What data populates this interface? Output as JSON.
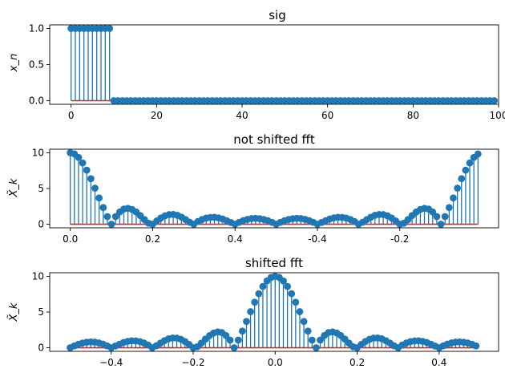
{
  "figure": {
    "colors": {
      "stem": "#1f77b4",
      "baseline": "#d62728",
      "axis": "#000000"
    },
    "panels": [
      {
        "id": "sig",
        "title": "sig",
        "ylabel": "x_n",
        "xticks": [
          {
            "pos": 0,
            "label": "0"
          },
          {
            "pos": 20,
            "label": "20"
          },
          {
            "pos": 40,
            "label": "40"
          },
          {
            "pos": 60,
            "label": "60"
          },
          {
            "pos": 80,
            "label": "80"
          },
          {
            "pos": 100,
            "label": "100"
          }
        ],
        "yticks": [
          {
            "pos": 0,
            "label": "0.0"
          },
          {
            "pos": 0.5,
            "label": "0.5"
          },
          {
            "pos": 1,
            "label": "1.0"
          }
        ]
      },
      {
        "id": "not-shifted",
        "title": "not shifted fft",
        "ylabel": "X̃_k",
        "xticks": [
          {
            "pos": 0,
            "label": "0.0"
          },
          {
            "pos": 20,
            "label": "0.2"
          },
          {
            "pos": 40,
            "label": "0.4"
          },
          {
            "pos": 60,
            "label": "-0.4"
          },
          {
            "pos": 80,
            "label": "-0.2"
          }
        ],
        "yticks": [
          {
            "pos": 0,
            "label": "0"
          },
          {
            "pos": 5,
            "label": "5"
          },
          {
            "pos": 10,
            "label": "10"
          }
        ]
      },
      {
        "id": "shifted",
        "title": "shifted fft",
        "ylabel": "X̃_k",
        "xticks": [
          {
            "pos": -0.4,
            "label": "−0.4"
          },
          {
            "pos": -0.2,
            "label": "−0.2"
          },
          {
            "pos": 0,
            "label": "0.0"
          },
          {
            "pos": 0.2,
            "label": "0.2"
          },
          {
            "pos": 0.4,
            "label": "0.4"
          }
        ],
        "yticks": [
          {
            "pos": 0,
            "label": "0"
          },
          {
            "pos": 5,
            "label": "5"
          },
          {
            "pos": 10,
            "label": "10"
          }
        ]
      }
    ]
  },
  "chart_data": [
    {
      "type": "stem",
      "title": "sig",
      "xlabel": "",
      "ylabel": "x_n",
      "xlim": [
        -5,
        100
      ],
      "ylim": [
        -0.05,
        1.05
      ],
      "x": [
        0,
        1,
        2,
        3,
        4,
        5,
        6,
        7,
        8,
        9,
        10,
        11,
        12,
        13,
        14,
        15,
        16,
        17,
        18,
        19,
        20,
        21,
        22,
        23,
        24,
        25,
        26,
        27,
        28,
        29,
        30,
        31,
        32,
        33,
        34,
        35,
        36,
        37,
        38,
        39,
        40,
        41,
        42,
        43,
        44,
        45,
        46,
        47,
        48,
        49,
        50,
        51,
        52,
        53,
        54,
        55,
        56,
        57,
        58,
        59,
        60,
        61,
        62,
        63,
        64,
        65,
        66,
        67,
        68,
        69,
        70,
        71,
        72,
        73,
        74,
        75,
        76,
        77,
        78,
        79,
        80,
        81,
        82,
        83,
        84,
        85,
        86,
        87,
        88,
        89,
        90,
        91,
        92,
        93,
        94,
        95,
        96,
        97,
        98,
        99
      ],
      "values": [
        1,
        1,
        1,
        1,
        1,
        1,
        1,
        1,
        1,
        1,
        0,
        0,
        0,
        0,
        0,
        0,
        0,
        0,
        0,
        0,
        0,
        0,
        0,
        0,
        0,
        0,
        0,
        0,
        0,
        0,
        0,
        0,
        0,
        0,
        0,
        0,
        0,
        0,
        0,
        0,
        0,
        0,
        0,
        0,
        0,
        0,
        0,
        0,
        0,
        0,
        0,
        0,
        0,
        0,
        0,
        0,
        0,
        0,
        0,
        0,
        0,
        0,
        0,
        0,
        0,
        0,
        0,
        0,
        0,
        0,
        0,
        0,
        0,
        0,
        0,
        0,
        0,
        0,
        0,
        0,
        0,
        0,
        0,
        0,
        0,
        0,
        0,
        0,
        0,
        0,
        0,
        0,
        0,
        0,
        0,
        0,
        0,
        0,
        0,
        0
      ]
    },
    {
      "type": "stem",
      "title": "not shifted fft",
      "xlabel": "",
      "ylabel": "X̃_k",
      "xlim": [
        -5,
        104
      ],
      "ylim": [
        -0.5,
        10.5
      ],
      "x": [
        0,
        1,
        2,
        3,
        4,
        5,
        6,
        7,
        8,
        9,
        10,
        11,
        12,
        13,
        14,
        15,
        16,
        17,
        18,
        19,
        20,
        21,
        22,
        23,
        24,
        25,
        26,
        27,
        28,
        29,
        30,
        31,
        32,
        33,
        34,
        35,
        36,
        37,
        38,
        39,
        40,
        41,
        42,
        43,
        44,
        45,
        46,
        47,
        48,
        49,
        50,
        51,
        52,
        53,
        54,
        55,
        56,
        57,
        58,
        59,
        60,
        61,
        62,
        63,
        64,
        65,
        66,
        67,
        68,
        69,
        70,
        71,
        72,
        73,
        74,
        75,
        76,
        77,
        78,
        79,
        80,
        81,
        82,
        83,
        84,
        85,
        86,
        87,
        88,
        89,
        90,
        91,
        92,
        93,
        94,
        95,
        96,
        97,
        98,
        99
      ],
      "values": [
        10,
        9.84,
        9.35,
        8.58,
        7.57,
        6.37,
        5.05,
        3.68,
        2.33,
        1.07,
        0,
        1.07,
        1.71,
        2.12,
        2.22,
        2.07,
        1.71,
        1.21,
        0.65,
        0.14,
        0,
        0.46,
        0.87,
        1.18,
        1.35,
        1.37,
        1.25,
        0.99,
        0.65,
        0.28,
        0,
        0.38,
        0.66,
        0.86,
        0.95,
        0.97,
        0.89,
        0.73,
        0.5,
        0.24,
        0,
        0.27,
        0.51,
        0.68,
        0.79,
        0.82,
        0.77,
        0.66,
        0.49,
        0.26,
        0,
        0.26,
        0.49,
        0.66,
        0.77,
        0.82,
        0.79,
        0.68,
        0.51,
        0.27,
        0,
        0.24,
        0.5,
        0.73,
        0.89,
        0.97,
        0.95,
        0.86,
        0.66,
        0.38,
        0,
        0.28,
        0.65,
        0.99,
        1.25,
        1.37,
        1.35,
        1.18,
        0.87,
        0.46,
        0,
        0.14,
        0.65,
        1.21,
        1.71,
        2.07,
        2.22,
        2.12,
        1.71,
        1.07,
        0,
        1.07,
        2.33,
        3.68,
        5.05,
        6.37,
        7.57,
        8.58,
        9.35,
        9.84
      ]
    },
    {
      "type": "stem",
      "title": "shifted fft",
      "xlabel": "",
      "ylabel": "X̃_k",
      "xlim": [
        -0.55,
        0.545
      ],
      "ylim": [
        -0.5,
        10.5
      ],
      "x": [
        -0.5,
        -0.49,
        -0.48,
        -0.47,
        -0.46,
        -0.45,
        -0.44,
        -0.43,
        -0.42,
        -0.41,
        -0.4,
        -0.39,
        -0.38,
        -0.37,
        -0.36,
        -0.35,
        -0.34,
        -0.33,
        -0.32,
        -0.31,
        -0.3,
        -0.29,
        -0.28,
        -0.27,
        -0.26,
        -0.25,
        -0.24,
        -0.23,
        -0.22,
        -0.21,
        -0.2,
        -0.19,
        -0.18,
        -0.17,
        -0.16,
        -0.15,
        -0.14,
        -0.13,
        -0.12,
        -0.11,
        -0.1,
        -0.09,
        -0.08,
        -0.07,
        -0.06,
        -0.05,
        -0.04,
        -0.03,
        -0.02,
        -0.01,
        0,
        0.01,
        0.02,
        0.03,
        0.04,
        0.05,
        0.06,
        0.07,
        0.08,
        0.09,
        0.1,
        0.11,
        0.12,
        0.13,
        0.14,
        0.15,
        0.16,
        0.17,
        0.18,
        0.19,
        0.2,
        0.21,
        0.22,
        0.23,
        0.24,
        0.25,
        0.26,
        0.27,
        0.28,
        0.29,
        0.3,
        0.31,
        0.32,
        0.33,
        0.34,
        0.35,
        0.36,
        0.37,
        0.38,
        0.39,
        0.4,
        0.41,
        0.42,
        0.43,
        0.44,
        0.45,
        0.46,
        0.47,
        0.48,
        0.49
      ],
      "values": [
        0,
        0.26,
        0.49,
        0.66,
        0.77,
        0.82,
        0.79,
        0.68,
        0.51,
        0.27,
        0,
        0.24,
        0.5,
        0.73,
        0.89,
        0.97,
        0.95,
        0.86,
        0.66,
        0.38,
        0,
        0.28,
        0.65,
        0.99,
        1.25,
        1.37,
        1.35,
        1.18,
        0.87,
        0.46,
        0,
        0.14,
        0.65,
        1.21,
        1.71,
        2.07,
        2.22,
        2.12,
        1.71,
        1.07,
        0,
        1.07,
        2.33,
        3.68,
        5.05,
        6.37,
        7.57,
        8.58,
        9.35,
        9.84,
        10,
        9.84,
        9.35,
        8.58,
        7.57,
        6.37,
        5.05,
        3.68,
        2.33,
        1.07,
        0,
        1.07,
        1.71,
        2.12,
        2.22,
        2.07,
        1.71,
        1.21,
        0.65,
        0.14,
        0,
        0.46,
        0.87,
        1.18,
        1.35,
        1.37,
        1.25,
        0.99,
        0.65,
        0.28,
        0,
        0.38,
        0.66,
        0.86,
        0.95,
        0.97,
        0.89,
        0.73,
        0.5,
        0.24,
        0,
        0.27,
        0.51,
        0.68,
        0.79,
        0.82,
        0.77,
        0.66,
        0.49,
        0.26
      ]
    }
  ]
}
